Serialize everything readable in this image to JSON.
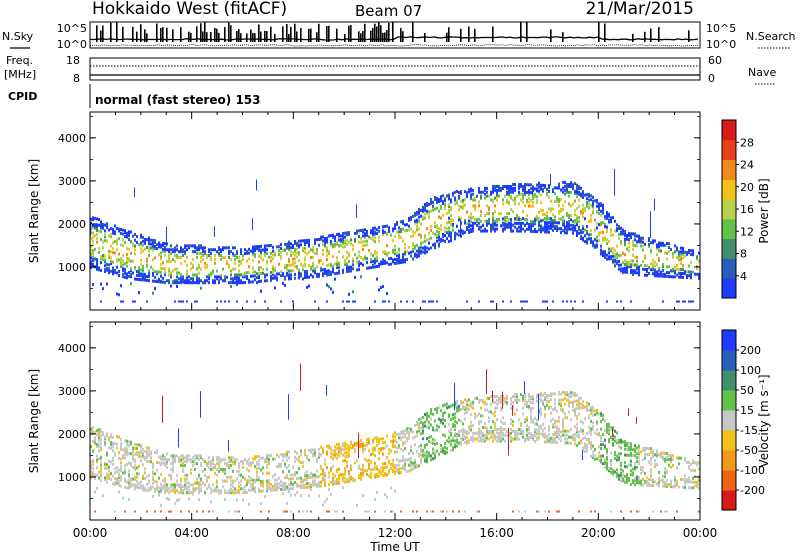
{
  "header": {
    "station": "Hokkaido West (fitACF)",
    "beam": "Beam 07",
    "date": "21/Mar/2015"
  },
  "nsky_panel": {
    "label": "N.Sky",
    "right_label": "N.Search",
    "left_ticks": [
      "10^5",
      "10^0"
    ],
    "right_ticks": [
      "10^5",
      "10^0"
    ]
  },
  "freq_panel": {
    "label": "Freq.",
    "unit": "[MHz]",
    "left_ticks": [
      "18",
      "8"
    ],
    "right_label": "Nave",
    "right_ticks": [
      "60",
      "0"
    ]
  },
  "cpid": {
    "label": "CPID",
    "value": "normal (fast stereo) 153"
  },
  "chart_data": [
    {
      "type": "heatmap",
      "name": "power-panel",
      "ylabel": "Slant Range [km]",
      "ylim": [
        0,
        4600
      ],
      "yticks": [
        "1000",
        "2000",
        "3000",
        "4000"
      ],
      "xticks": [
        "00:00",
        "04:00",
        "08:00",
        "12:00",
        "16:00",
        "20:00",
        "00:00"
      ],
      "xlim_hours": [
        0,
        24
      ],
      "colorbar": {
        "label": "Power [dB]",
        "ticks": [
          "4",
          "8",
          "12",
          "16",
          "20",
          "24",
          "28"
        ],
        "colors": [
          "#1e3cff",
          "#2a5cb8",
          "#3f8f6a",
          "#62c24a",
          "#b8d04a",
          "#f2c21a",
          "#f08a1a",
          "#e8401a",
          "#d81a1a"
        ]
      },
      "echo_trace": [
        {
          "t": 0.0,
          "center": 1550,
          "width": 600
        },
        {
          "t": 1.5,
          "center": 1250,
          "width": 550
        },
        {
          "t": 3.0,
          "center": 1050,
          "width": 450
        },
        {
          "t": 6.0,
          "center": 1000,
          "width": 400
        },
        {
          "t": 9.0,
          "center": 1200,
          "width": 450
        },
        {
          "t": 11.5,
          "center": 1450,
          "width": 450
        },
        {
          "t": 12.5,
          "center": 1600,
          "width": 500
        },
        {
          "t": 13.5,
          "center": 2000,
          "width": 600
        },
        {
          "t": 15.0,
          "center": 2300,
          "width": 500
        },
        {
          "t": 17.0,
          "center": 2350,
          "width": 550
        },
        {
          "t": 19.0,
          "center": 2350,
          "width": 600
        },
        {
          "t": 20.0,
          "center": 1900,
          "width": 600
        },
        {
          "t": 21.0,
          "center": 1300,
          "width": 500
        },
        {
          "t": 24.0,
          "center": 1000,
          "width": 300
        }
      ]
    },
    {
      "type": "heatmap",
      "name": "velocity-panel",
      "ylabel": "Slant Range [km]",
      "ylim": [
        0,
        4600
      ],
      "yticks": [
        "1000",
        "2000",
        "3000",
        "4000"
      ],
      "xticks": [
        "00:00",
        "04:00",
        "08:00",
        "12:00",
        "16:00",
        "20:00",
        "00:00"
      ],
      "xlabel": "Time UT",
      "colorbar": {
        "label": "Velocity [m s⁻¹]",
        "ticks": [
          "-200",
          "-100",
          "-50",
          "-15",
          "15",
          "50",
          "100",
          "200"
        ],
        "colors": [
          "#d81a1a",
          "#f06418",
          "#f29a1a",
          "#f2c21a",
          "#c8c8c8",
          "#62c24a",
          "#3f8f6a",
          "#2a5cb8",
          "#1e3cff"
        ]
      }
    }
  ]
}
